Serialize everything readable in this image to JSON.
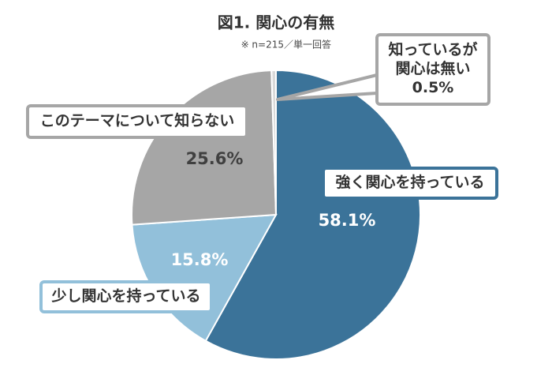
{
  "chart_data": {
    "type": "pie",
    "title": "図1. 関心の有無",
    "subtitle": "※ n=215／単一回答",
    "categories": [
      "強く関心を持っている",
      "少し関心を持っている",
      "このテーマについて知らない",
      "知っているが\n関心は無い"
    ],
    "values": [
      58.1,
      15.8,
      25.6,
      0.5
    ],
    "value_labels": [
      "58.1%",
      "15.8%",
      "25.6%",
      "0.5%"
    ],
    "colors": [
      "#3b7399",
      "#92c0da",
      "#a6a6a6",
      "#d9d9d9"
    ]
  }
}
